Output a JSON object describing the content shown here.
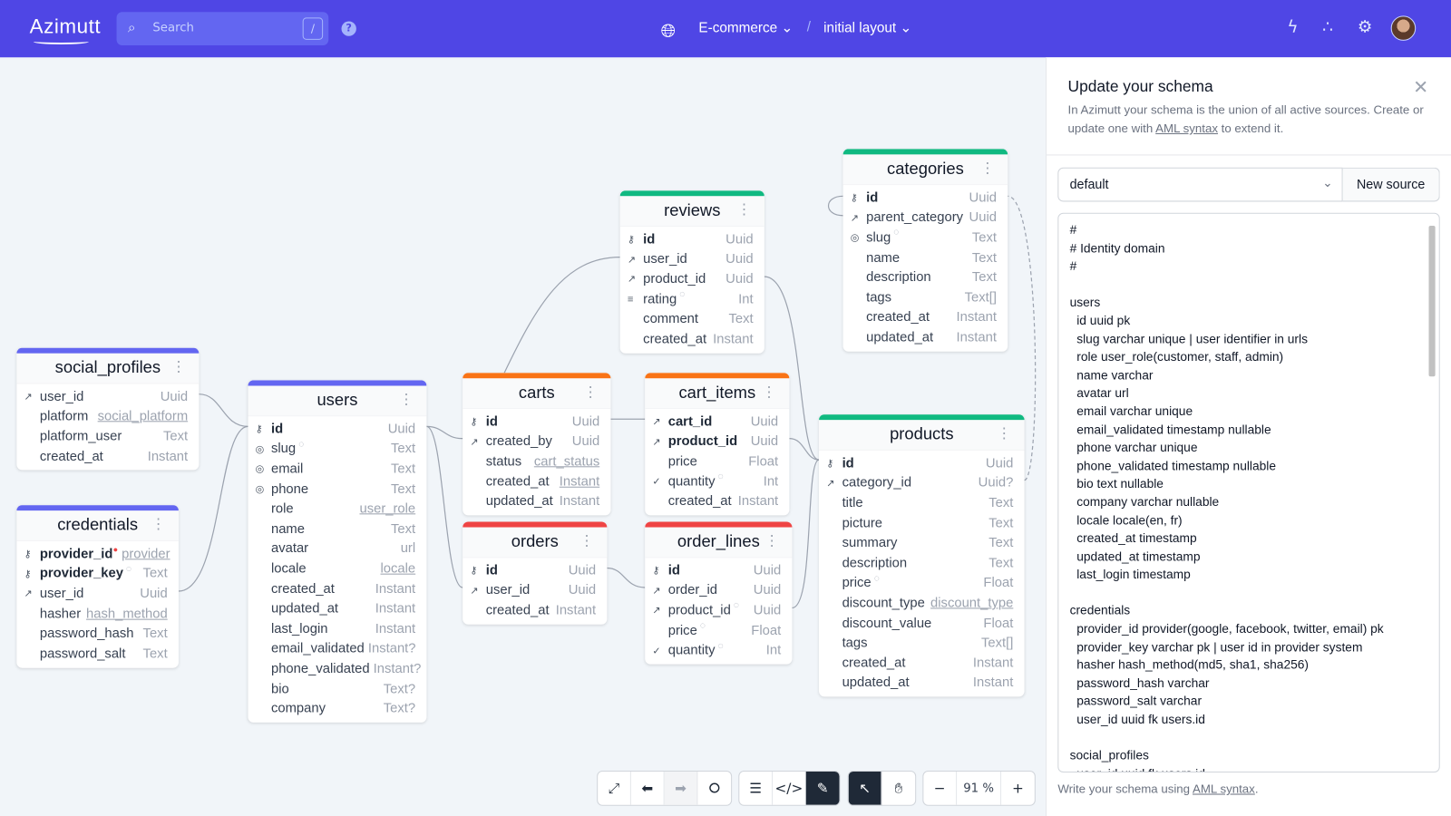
{
  "header": {
    "logo": "Azimutt",
    "search_placeholder": "Search",
    "search_shortcut": "/",
    "help_icon": "question-circle-icon",
    "project": "E-commerce",
    "separator": "/",
    "layout": "initial layout",
    "icons": [
      "lightning-icon",
      "share-icon",
      "gear-icon",
      "avatar"
    ],
    "brand_color": "#4f46e5"
  },
  "tables": [
    {
      "name": "social_profiles",
      "color": "#6366f1",
      "columns": [
        {
          "name": "user_id",
          "type": "Uuid",
          "icon": "fk"
        },
        {
          "name": "platform",
          "type": "social_platform",
          "link": true
        },
        {
          "name": "platform_user",
          "type": "Text"
        },
        {
          "name": "created_at",
          "type": "Instant"
        }
      ]
    },
    {
      "name": "credentials",
      "color": "#6366f1",
      "columns": [
        {
          "name": "provider_id",
          "type": "provider",
          "icon": "pk",
          "bold": true,
          "link": true,
          "alert": true
        },
        {
          "name": "provider_key",
          "type": "Text",
          "icon": "pk",
          "bold": true,
          "comment": true
        },
        {
          "name": "user_id",
          "type": "Uuid",
          "icon": "fk"
        },
        {
          "name": "hasher",
          "type": "hash_method",
          "link": true
        },
        {
          "name": "password_hash",
          "type": "Text"
        },
        {
          "name": "password_salt",
          "type": "Text"
        }
      ]
    },
    {
      "name": "users",
      "color": "#6366f1",
      "columns": [
        {
          "name": "id",
          "type": "Uuid",
          "icon": "pk",
          "bold": true
        },
        {
          "name": "slug",
          "type": "Text",
          "icon": "unique",
          "comment": true
        },
        {
          "name": "email",
          "type": "Text",
          "icon": "unique"
        },
        {
          "name": "phone",
          "type": "Text",
          "icon": "unique"
        },
        {
          "name": "role",
          "type": "user_role",
          "link": true
        },
        {
          "name": "name",
          "type": "Text"
        },
        {
          "name": "avatar",
          "type": "url"
        },
        {
          "name": "locale",
          "type": "locale",
          "link": true
        },
        {
          "name": "created_at",
          "type": "Instant"
        },
        {
          "name": "updated_at",
          "type": "Instant"
        },
        {
          "name": "last_login",
          "type": "Instant"
        },
        {
          "name": "email_validated",
          "type": "Instant?"
        },
        {
          "name": "phone_validated",
          "type": "Instant?"
        },
        {
          "name": "bio",
          "type": "Text?"
        },
        {
          "name": "company",
          "type": "Text?"
        }
      ]
    },
    {
      "name": "carts",
      "color": "#f97316",
      "columns": [
        {
          "name": "id",
          "type": "Uuid",
          "icon": "pk",
          "bold": true
        },
        {
          "name": "created_by",
          "type": "Uuid",
          "icon": "fk"
        },
        {
          "name": "status",
          "type": "cart_status",
          "link": true
        },
        {
          "name": "created_at",
          "type": "Instant",
          "link": true
        },
        {
          "name": "updated_at",
          "type": "Instant"
        }
      ]
    },
    {
      "name": "cart_items",
      "color": "#f97316",
      "columns": [
        {
          "name": "cart_id",
          "type": "Uuid",
          "icon": "fk",
          "bold": true
        },
        {
          "name": "product_id",
          "type": "Uuid",
          "icon": "fk",
          "bold": true
        },
        {
          "name": "price",
          "type": "Float"
        },
        {
          "name": "quantity",
          "type": "Int",
          "icon": "check",
          "comment": true
        },
        {
          "name": "created_at",
          "type": "Instant"
        }
      ]
    },
    {
      "name": "orders",
      "color": "#ef4444",
      "columns": [
        {
          "name": "id",
          "type": "Uuid",
          "icon": "pk",
          "bold": true
        },
        {
          "name": "user_id",
          "type": "Uuid",
          "icon": "fk"
        },
        {
          "name": "created_at",
          "type": "Instant"
        }
      ]
    },
    {
      "name": "order_lines",
      "color": "#ef4444",
      "columns": [
        {
          "name": "id",
          "type": "Uuid",
          "icon": "pk",
          "bold": true
        },
        {
          "name": "order_id",
          "type": "Uuid",
          "icon": "fk"
        },
        {
          "name": "product_id",
          "type": "Uuid",
          "icon": "fk",
          "comment": true
        },
        {
          "name": "price",
          "type": "Float",
          "comment": true
        },
        {
          "name": "quantity",
          "type": "Int",
          "icon": "check",
          "comment": true
        }
      ]
    },
    {
      "name": "reviews",
      "color": "#10b981",
      "columns": [
        {
          "name": "id",
          "type": "Uuid",
          "icon": "pk",
          "bold": true
        },
        {
          "name": "user_id",
          "type": "Uuid",
          "icon": "fk"
        },
        {
          "name": "product_id",
          "type": "Uuid",
          "icon": "fk"
        },
        {
          "name": "rating",
          "type": "Int",
          "icon": "index",
          "comment": true
        },
        {
          "name": "comment",
          "type": "Text"
        },
        {
          "name": "created_at",
          "type": "Instant"
        }
      ]
    },
    {
      "name": "categories",
      "color": "#10b981",
      "columns": [
        {
          "name": "id",
          "type": "Uuid",
          "icon": "pk",
          "bold": true
        },
        {
          "name": "parent_category",
          "type": "Uuid",
          "icon": "fk"
        },
        {
          "name": "slug",
          "type": "Text",
          "icon": "unique",
          "comment": true
        },
        {
          "name": "name",
          "type": "Text"
        },
        {
          "name": "description",
          "type": "Text"
        },
        {
          "name": "tags",
          "type": "Text[]"
        },
        {
          "name": "created_at",
          "type": "Instant"
        },
        {
          "name": "updated_at",
          "type": "Instant"
        }
      ]
    },
    {
      "name": "products",
      "color": "#10b981",
      "columns": [
        {
          "name": "id",
          "type": "Uuid",
          "icon": "pk",
          "bold": true
        },
        {
          "name": "category_id",
          "type": "Uuid?",
          "icon": "fk"
        },
        {
          "name": "title",
          "type": "Text"
        },
        {
          "name": "picture",
          "type": "Text"
        },
        {
          "name": "summary",
          "type": "Text"
        },
        {
          "name": "description",
          "type": "Text"
        },
        {
          "name": "price",
          "type": "Float",
          "comment": true
        },
        {
          "name": "discount_type",
          "type": "discount_type",
          "link": true
        },
        {
          "name": "discount_value",
          "type": "Float"
        },
        {
          "name": "tags",
          "type": "Text[]"
        },
        {
          "name": "created_at",
          "type": "Instant"
        },
        {
          "name": "updated_at",
          "type": "Instant"
        }
      ]
    }
  ],
  "panel": {
    "title": "Update your schema",
    "desc_before": "In Azimutt your schema is the union of all active sources. Create or update one with ",
    "desc_link": "AML syntax",
    "desc_after": " to extend it.",
    "source_selected": "default",
    "new_source": "New source",
    "editor": "#\n# Identity domain\n#\n\nusers\n  id uuid pk\n  slug varchar unique | user identifier in urls\n  role user_role(customer, staff, admin)\n  name varchar\n  avatar url\n  email varchar unique\n  email_validated timestamp nullable\n  phone varchar unique\n  phone_validated timestamp nullable\n  bio text nullable\n  company varchar nullable\n  locale locale(en, fr)\n  created_at timestamp\n  updated_at timestamp\n  last_login timestamp\n\ncredentials\n  provider_id provider(google, facebook, twitter, email) pk\n  provider_key varchar pk | user id in provider system\n  hasher hash_method(md5, sha1, sha256)\n  password_hash varchar\n  password_salt varchar\n  user_id uuid fk users.id\n\nsocial_profiles\n  user_id uuid fk users.id",
    "foot_before": "Write your schema using ",
    "foot_link": "AML syntax",
    "foot_after": "."
  },
  "toolbar": {
    "zoom": "91 %",
    "active_mode": "select",
    "details_panel": "edit"
  }
}
